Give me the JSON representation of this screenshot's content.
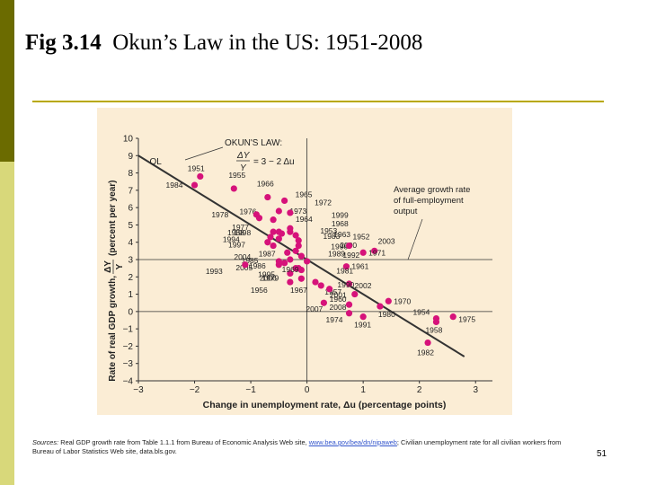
{
  "slide": {
    "title_bold": "Fig 3.14",
    "title_rest": "Okun’s Law in the US: 1951-2008",
    "sources_label": "Sources:",
    "sources_text1": "Real GDP growth rate from Table 1.1.1 from Bureau of Economic Analysis Web site,",
    "sources_link": "www.bea.gov/bea/dn/nipaweb",
    "sources_text2": "; Civilian unemployment rate for all civilian workers from Bureau of Labor Statistics Web site,",
    "sources_text3": "data.bls.gov",
    "sources_end": ".",
    "page_number": "51"
  },
  "colors": {
    "point": "#d6127a",
    "panel": "#fbedd5",
    "line": "#333333"
  },
  "chart_data": {
    "type": "scatter",
    "title": "",
    "xlabel": "Change in unemployment rate, Δu (percentage points)",
    "ylabel_main": "Rate of real GDP growth,",
    "ylabel_frac_num": "ΔY",
    "ylabel_frac_den": "Y",
    "ylabel_units": "(percent per year)",
    "xlim": [
      -3,
      3.3
    ],
    "ylim": [
      -4,
      10
    ],
    "x_ticks": [
      -3,
      -2,
      -1,
      0,
      1,
      2,
      3
    ],
    "x_tick_labels": [
      "−3",
      "−2",
      "−1",
      "0",
      "1",
      "2",
      "3"
    ],
    "y_ticks": [
      -4,
      -3,
      -2,
      -1,
      0,
      1,
      2,
      3,
      4,
      5,
      6,
      7,
      8,
      9,
      10
    ],
    "y_tick_labels": [
      "−4",
      "−3",
      "−2",
      "−1",
      "0",
      "1",
      "2",
      "3",
      "4",
      "5",
      "6",
      "7",
      "8",
      "9",
      "10"
    ],
    "okun_line": {
      "label": "OL",
      "x": [
        -3,
        2.8
      ],
      "y": [
        9,
        -2.6
      ]
    },
    "okun_law_title": "OKUN'S LAW:",
    "okun_law_lhs_num": "ΔY",
    "okun_law_lhs_den": "Y",
    "okun_law_rhs": "= 3 − 2 Δu",
    "full_employment_label": [
      "Average growth rate",
      "of full-employment",
      "output"
    ],
    "points": [
      {
        "year": "1951",
        "x": -1.9,
        "y": 7.8
      },
      {
        "year": "1955",
        "x": -1.3,
        "y": 7.1
      },
      {
        "year": "1984",
        "x": -2.0,
        "y": 7.3
      },
      {
        "year": "1966",
        "x": -0.7,
        "y": 6.6
      },
      {
        "year": "1976",
        "x": -0.85,
        "y": 5.4
      },
      {
        "year": "1978",
        "x": -0.9,
        "y": 5.6
      },
      {
        "year": "1965",
        "x": -0.4,
        "y": 6.4
      },
      {
        "year": "1973",
        "x": -0.5,
        "y": 5.8
      },
      {
        "year": "1964",
        "x": -0.3,
        "y": 5.7
      },
      {
        "year": "1972",
        "x": -0.6,
        "y": 5.3
      },
      {
        "year": "1999",
        "x": -0.3,
        "y": 4.8
      },
      {
        "year": "1968",
        "x": -0.3,
        "y": 4.6
      },
      {
        "year": "1953",
        "x": -0.5,
        "y": 4.6
      },
      {
        "year": "1983",
        "x": -0.45,
        "y": 4.5
      },
      {
        "year": "2000",
        "x": -0.15,
        "y": 4.1
      },
      {
        "year": "1963",
        "x": -0.2,
        "y": 4.4
      },
      {
        "year": "1996",
        "x": -0.15,
        "y": 3.8
      },
      {
        "year": "1989",
        "x": -0.2,
        "y": 3.5
      },
      {
        "year": "1998",
        "x": -0.5,
        "y": 4.2
      },
      {
        "year": "1977",
        "x": -0.6,
        "y": 4.6
      },
      {
        "year": "1988",
        "x": -0.65,
        "y": 4.3
      },
      {
        "year": "1994",
        "x": -0.7,
        "y": 4.0
      },
      {
        "year": "1997",
        "x": -0.6,
        "y": 3.8
      },
      {
        "year": "1987",
        "x": -0.35,
        "y": 3.4
      },
      {
        "year": "1952",
        "x": 0.75,
        "y": 3.8
      },
      {
        "year": "2003",
        "x": 1.2,
        "y": 3.5
      },
      {
        "year": "1971",
        "x": 1.0,
        "y": 3.4
      },
      {
        "year": "1992",
        "x": -0.1,
        "y": 3.2
      },
      {
        "year": "1961",
        "x": 0.7,
        "y": 2.6
      },
      {
        "year": "1981",
        "x": -0.15,
        "y": 2.5
      },
      {
        "year": "2002",
        "x": 0.75,
        "y": 1.6
      },
      {
        "year": "1990",
        "x": -0.1,
        "y": 1.9
      },
      {
        "year": "2004",
        "x": -0.5,
        "y": 2.9
      },
      {
        "year": "1985",
        "x": -0.4,
        "y": 2.8
      },
      {
        "year": "2005",
        "x": -0.5,
        "y": 2.7
      },
      {
        "year": "2006",
        "x": -0.3,
        "y": 2.2
      },
      {
        "year": "1995",
        "x": -0.2,
        "y": 2.5
      },
      {
        "year": "1993",
        "x": -1.1,
        "y": 2.7
      },
      {
        "year": "1979",
        "x": -0.1,
        "y": 2.4
      },
      {
        "year": "1986",
        "x": -0.3,
        "y": 3.0
      },
      {
        "year": "1969",
        "x": 0.0,
        "y": 2.9
      },
      {
        "year": "1967",
        "x": 0.15,
        "y": 1.7
      },
      {
        "year": "1957",
        "x": 0.25,
        "y": 1.5
      },
      {
        "year": "1960",
        "x": 0.4,
        "y": 1.3
      },
      {
        "year": "1956",
        "x": -0.3,
        "y": 1.7
      },
      {
        "year": "2007",
        "x": 0.3,
        "y": 0.5
      },
      {
        "year": "1970",
        "x": 1.45,
        "y": 0.6
      },
      {
        "year": "2001",
        "x": 0.85,
        "y": 1.0
      },
      {
        "year": "2008",
        "x": 0.75,
        "y": 0.4
      },
      {
        "year": "1974",
        "x": 0.75,
        "y": -0.1
      },
      {
        "year": "1980",
        "x": 1.3,
        "y": 0.3
      },
      {
        "year": "1991",
        "x": 1.0,
        "y": -0.3
      },
      {
        "year": "1954",
        "x": 2.3,
        "y": -0.4
      },
      {
        "year": "1975",
        "x": 2.6,
        "y": -0.3
      },
      {
        "year": "1958",
        "x": 2.3,
        "y": -0.6
      },
      {
        "year": "1982",
        "x": 2.15,
        "y": -1.8
      }
    ]
  }
}
